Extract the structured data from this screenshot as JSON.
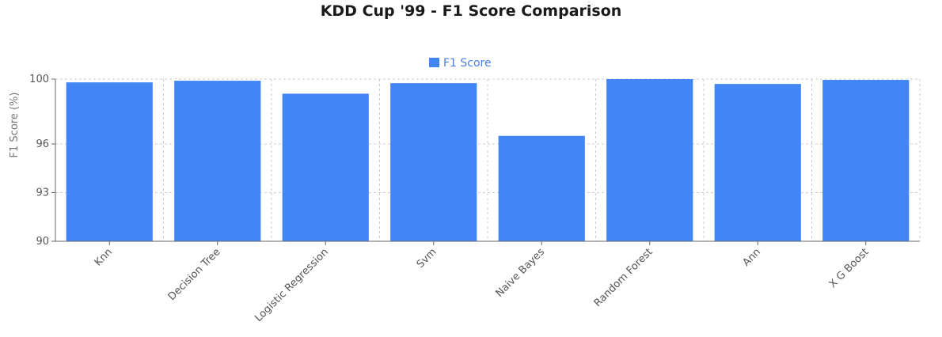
{
  "chart_data": {
    "type": "bar",
    "title": "KDD Cup '99 - F1 Score Comparison",
    "ylabel": "F1 Score (%)",
    "xlabel": "",
    "ylim": [
      90,
      100
    ],
    "yticks": [
      90,
      93,
      96,
      100
    ],
    "grid": true,
    "legend_placement": "top-center",
    "series": [
      {
        "name": "F1 Score",
        "color": "#4285f4",
        "values": [
          99.8,
          99.9,
          99.1,
          99.75,
          96.5,
          100.0,
          99.7,
          99.95
        ]
      }
    ],
    "categories": [
      "Knn",
      "Decision Tree",
      "Logistic Regression",
      "Svm",
      "Naive Bayes",
      "Random Forest",
      "Ann",
      "X G Boost"
    ]
  }
}
